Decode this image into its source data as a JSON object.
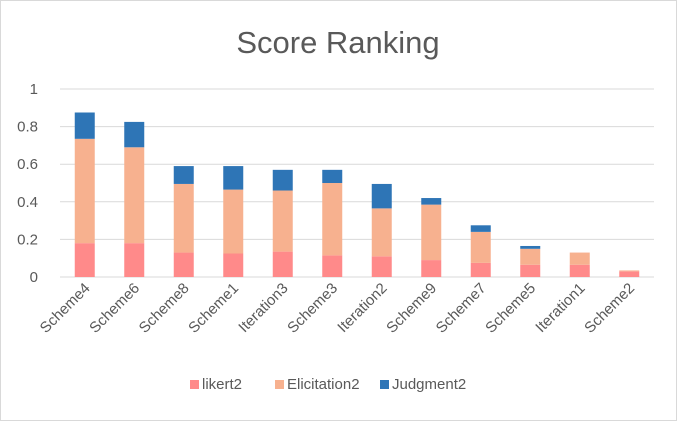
{
  "chart_data": {
    "type": "stacked-bar",
    "title": "Score Ranking",
    "xlabel": "",
    "ylabel": "",
    "ylim": [
      0,
      1
    ],
    "yticks": [
      0,
      0.2,
      0.4,
      0.6,
      0.8,
      1
    ],
    "ytick_labels": [
      "0",
      "0.2",
      "0.4",
      "0.6",
      "0.8",
      "1"
    ],
    "grid": true,
    "legend_position": "bottom",
    "categories": [
      "Scheme4",
      "Scheme6",
      "Scheme8",
      "Scheme1",
      "Iteration3",
      "Scheme3",
      "Iteration2",
      "Scheme9",
      "Scheme7",
      "Scheme5",
      "Iteration1",
      "Scheme2"
    ],
    "series": [
      {
        "name": "likert2",
        "color": "#ff8a8a",
        "values": [
          0.18,
          0.18,
          0.13,
          0.125,
          0.135,
          0.115,
          0.11,
          0.09,
          0.075,
          0.065,
          0.065,
          0.03
        ]
      },
      {
        "name": "Elicitation2",
        "color": "#f7b18f",
        "values": [
          0.555,
          0.51,
          0.365,
          0.34,
          0.325,
          0.385,
          0.255,
          0.295,
          0.165,
          0.085,
          0.065,
          0.005
        ]
      },
      {
        "name": "Judgment2",
        "color": "#2e75b6",
        "values": [
          0.14,
          0.135,
          0.095,
          0.125,
          0.11,
          0.07,
          0.13,
          0.035,
          0.035,
          0.015,
          0.0,
          0.0
        ]
      }
    ]
  }
}
